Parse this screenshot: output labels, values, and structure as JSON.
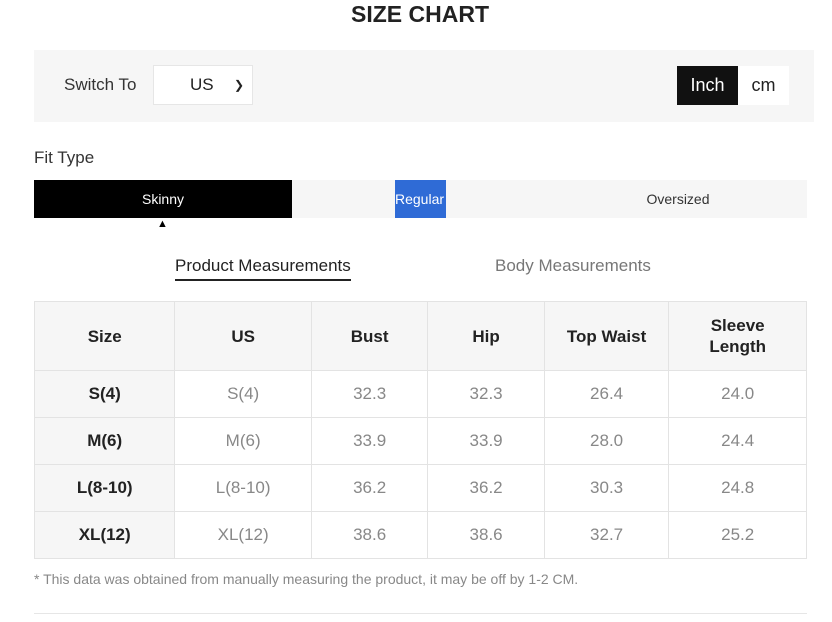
{
  "title": "SIZE CHART",
  "switch": {
    "label": "Switch To",
    "region": "US",
    "units": [
      "Inch",
      "cm"
    ],
    "active_unit": "Inch"
  },
  "fit": {
    "label": "Fit Type",
    "options": [
      "Skinny",
      "Regular",
      "Oversized"
    ],
    "selected": "Skinny"
  },
  "tabs": {
    "product": "Product Measurements",
    "body": "Body Measurements",
    "active": "product"
  },
  "table": {
    "headers": [
      "Size",
      "US",
      "Bust",
      "Hip",
      "Top Waist",
      "Sleeve Length"
    ],
    "rows": [
      [
        "S(4)",
        "S(4)",
        "32.3",
        "32.3",
        "26.4",
        "24.0"
      ],
      [
        "M(6)",
        "M(6)",
        "33.9",
        "33.9",
        "28.0",
        "24.4"
      ],
      [
        "L(8-10)",
        "L(8-10)",
        "36.2",
        "36.2",
        "30.3",
        "24.8"
      ],
      [
        "XL(12)",
        "XL(12)",
        "38.6",
        "38.6",
        "32.7",
        "25.2"
      ]
    ]
  },
  "note": "* This data was obtained from manually measuring the product, it may be off by 1-2 CM."
}
